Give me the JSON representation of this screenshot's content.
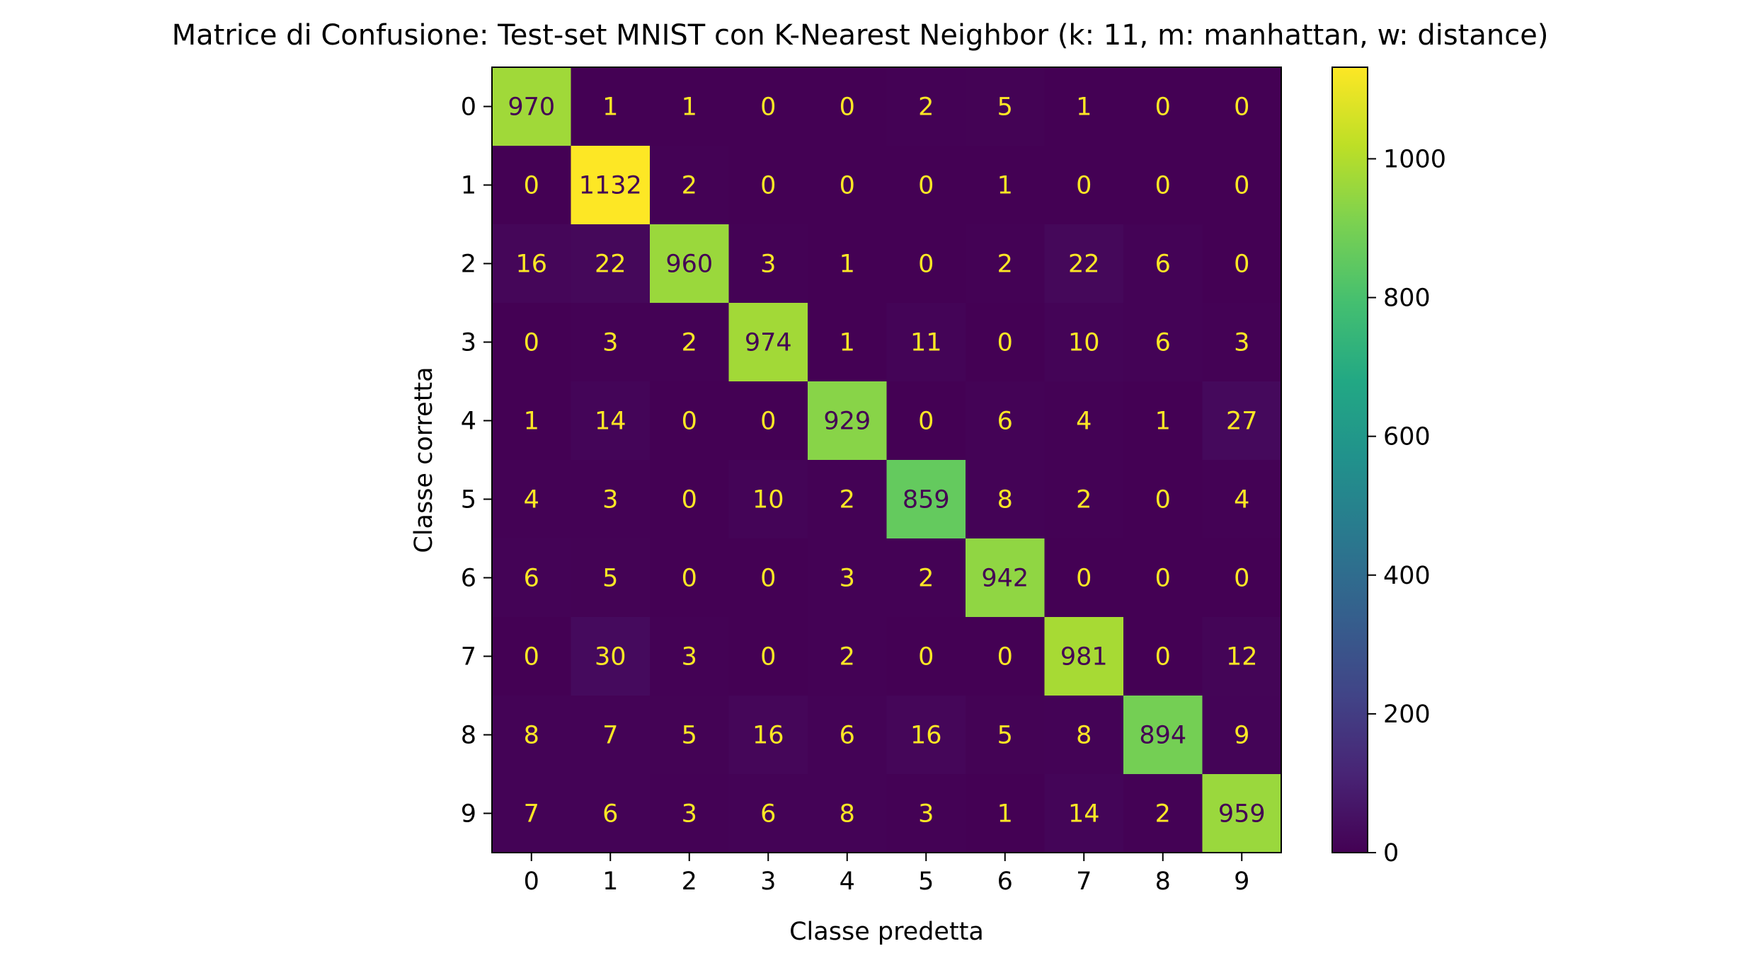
{
  "chart_data": {
    "type": "heatmap",
    "title": "Matrice di Confusione: Test-set MNIST con K-Nearest Neighbor (k: 11, m: manhattan, w: distance)",
    "xlabel": "Classe predetta",
    "ylabel": "Classe corretta",
    "x_categories": [
      "0",
      "1",
      "2",
      "3",
      "4",
      "5",
      "6",
      "7",
      "8",
      "9"
    ],
    "y_categories": [
      "0",
      "1",
      "2",
      "3",
      "4",
      "5",
      "6",
      "7",
      "8",
      "9"
    ],
    "matrix": [
      [
        970,
        1,
        1,
        0,
        0,
        2,
        5,
        1,
        0,
        0
      ],
      [
        0,
        1132,
        2,
        0,
        0,
        0,
        1,
        0,
        0,
        0
      ],
      [
        16,
        22,
        960,
        3,
        1,
        0,
        2,
        22,
        6,
        0
      ],
      [
        0,
        3,
        2,
        974,
        1,
        11,
        0,
        10,
        6,
        3
      ],
      [
        1,
        14,
        0,
        0,
        929,
        0,
        6,
        4,
        1,
        27
      ],
      [
        4,
        3,
        0,
        10,
        2,
        859,
        8,
        2,
        0,
        4
      ],
      [
        6,
        5,
        0,
        0,
        3,
        2,
        942,
        0,
        0,
        0
      ],
      [
        0,
        30,
        3,
        0,
        2,
        0,
        0,
        981,
        0,
        12
      ],
      [
        8,
        7,
        5,
        16,
        6,
        16,
        5,
        8,
        894,
        9
      ],
      [
        7,
        6,
        3,
        6,
        8,
        3,
        1,
        14,
        2,
        959
      ]
    ],
    "colormap": "viridis",
    "value_range": [
      0,
      1132
    ],
    "colorbar_ticks": [
      "0",
      "200",
      "400",
      "600",
      "800",
      "1000"
    ],
    "grid": false,
    "label_colors": {
      "on_dark": "#fde725",
      "on_light": "#440154"
    }
  }
}
